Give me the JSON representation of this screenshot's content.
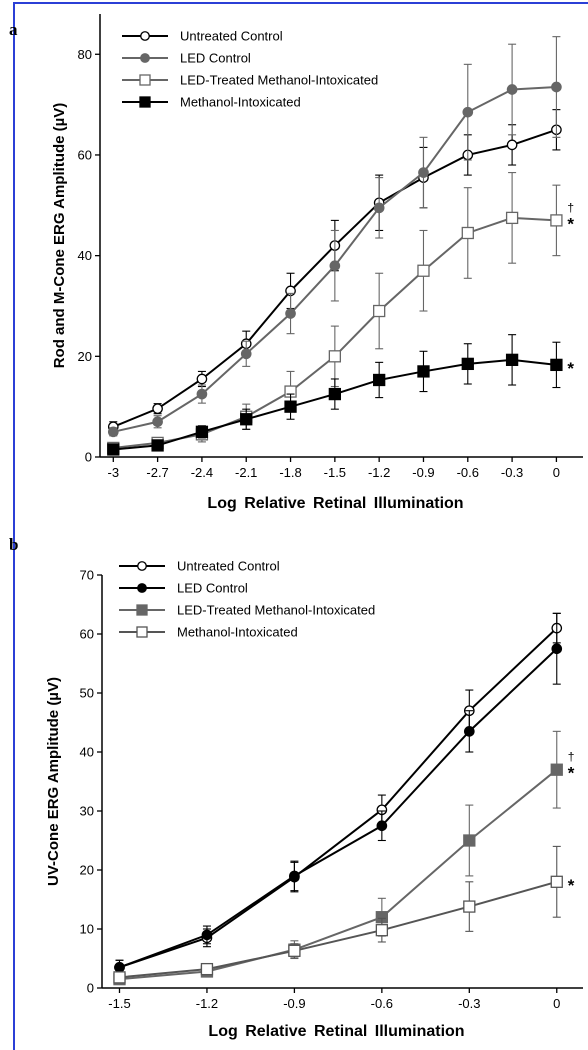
{
  "panels": {
    "a": {
      "letter": "a"
    },
    "b": {
      "letter": "b"
    }
  },
  "chart_data": [
    {
      "type": "line",
      "panel": "a",
      "xlabel": "Log Relative Retinal Illumination",
      "ylabel": "Rod and M-Cone ERG Amplitude (µV)",
      "x": [
        -3,
        -2.7,
        -2.4,
        -2.1,
        -1.8,
        -1.5,
        -1.2,
        -0.9,
        -0.6,
        -0.3,
        0
      ],
      "xticks": [
        "-3",
        "-2.7",
        "-2.4",
        "-2.1",
        "-1.8",
        "-1.5",
        "-1.2",
        "-0.9",
        "-0.6",
        "-0.3",
        "0"
      ],
      "yticks": [
        "0",
        "20",
        "40",
        "60",
        "80"
      ],
      "ylim": [
        0,
        88
      ],
      "legend_position": "top-left",
      "series": [
        {
          "name": "Untreated Control",
          "marker": "open-circle",
          "color": "#000000",
          "values": [
            6.0,
            9.6,
            15.5,
            22.5,
            33.0,
            42.0,
            50.5,
            55.5,
            60.0,
            62.0,
            65.0
          ],
          "errors": [
            1.0,
            1.0,
            1.5,
            2.5,
            3.5,
            5.0,
            5.5,
            6.0,
            4.0,
            4.0,
            4.0
          ]
        },
        {
          "name": "LED Control",
          "marker": "filled-circle",
          "color": "#666666",
          "values": [
            5.0,
            7.0,
            12.5,
            20.5,
            28.5,
            38.0,
            49.5,
            56.5,
            68.5,
            73.0,
            73.5
          ],
          "errors": [
            0.8,
            1.2,
            1.8,
            2.5,
            4.0,
            7.0,
            6.0,
            7.0,
            9.5,
            9.0,
            10.0
          ]
        },
        {
          "name": "LED-Treated Methanol-Intoxicated",
          "marker": "open-square",
          "color": "#666666",
          "values": [
            1.8,
            2.8,
            4.5,
            8.0,
            13.0,
            20.0,
            29.0,
            37.0,
            44.5,
            47.5,
            47.0
          ],
          "errors": [
            0.5,
            0.8,
            1.5,
            2.5,
            4.0,
            6.0,
            7.5,
            8.0,
            9.0,
            9.0,
            7.0
          ]
        },
        {
          "name": "Methanol-Intoxicated",
          "marker": "filled-square",
          "color": "#000000",
          "values": [
            1.5,
            2.3,
            5.0,
            7.5,
            10.0,
            12.5,
            15.3,
            17.0,
            18.5,
            19.3,
            18.3
          ],
          "errors": [
            0.5,
            0.8,
            1.2,
            2.0,
            2.5,
            3.0,
            3.5,
            4.0,
            4.0,
            5.0,
            4.5
          ]
        }
      ],
      "annotations": [
        {
          "text": "†",
          "x": 0,
          "y": 47.0,
          "series": "LED-Treated Methanol-Intoxicated"
        },
        {
          "text": "*",
          "x": 0,
          "y": 47.0,
          "series": "LED-Treated Methanol-Intoxicated"
        },
        {
          "text": "*",
          "x": 0,
          "y": 18.3,
          "series": "Methanol-Intoxicated"
        }
      ]
    },
    {
      "type": "line",
      "panel": "b",
      "xlabel": "Log Relative Retinal Illumination",
      "ylabel": "UV-Cone ERG Amplitude (µV)",
      "x": [
        -1.5,
        -1.2,
        -0.9,
        -0.6,
        -0.3,
        0
      ],
      "xticks": [
        "-1.5",
        "-1.2",
        "-0.9",
        "-0.6",
        "-0.3",
        "0"
      ],
      "yticks": [
        "0",
        "10",
        "20",
        "30",
        "40",
        "50",
        "60",
        "70"
      ],
      "ylim": [
        0,
        70
      ],
      "legend_position": "top-left",
      "series": [
        {
          "name": "Untreated Control",
          "marker": "open-circle",
          "color": "#000000",
          "values": [
            3.5,
            8.5,
            18.8,
            30.2,
            47.0,
            61.0
          ],
          "errors": [
            1.2,
            1.5,
            2.5,
            2.5,
            3.5,
            2.5
          ]
        },
        {
          "name": "LED Control",
          "marker": "filled-circle",
          "color": "#000000",
          "values": [
            3.5,
            9.0,
            19.0,
            27.5,
            43.5,
            57.5
          ],
          "errors": [
            1.2,
            1.5,
            2.5,
            2.5,
            3.5,
            6.0
          ]
        },
        {
          "name": "LED-Treated Methanol-Intoxicated",
          "marker": "filled-square",
          "color": "#666666",
          "values": [
            1.5,
            2.8,
            6.5,
            12.0,
            25.0,
            37.0
          ],
          "errors": [
            0.5,
            0.8,
            1.5,
            3.2,
            6.0,
            6.5
          ]
        },
        {
          "name": "Methanol-Intoxicated",
          "marker": "open-square",
          "color": "#555555",
          "values": [
            1.8,
            3.2,
            6.3,
            9.8,
            13.8,
            18.0
          ],
          "errors": [
            0.5,
            0.8,
            1.2,
            2.0,
            4.2,
            6.0
          ]
        }
      ],
      "annotations": [
        {
          "text": "†",
          "x": 0,
          "y": 37.0,
          "series": "LED-Treated Methanol-Intoxicated"
        },
        {
          "text": "*",
          "x": 0,
          "y": 37.0,
          "series": "LED-Treated Methanol-Intoxicated"
        },
        {
          "text": "*",
          "x": 0,
          "y": 18.0,
          "series": "Methanol-Intoxicated"
        }
      ]
    }
  ]
}
